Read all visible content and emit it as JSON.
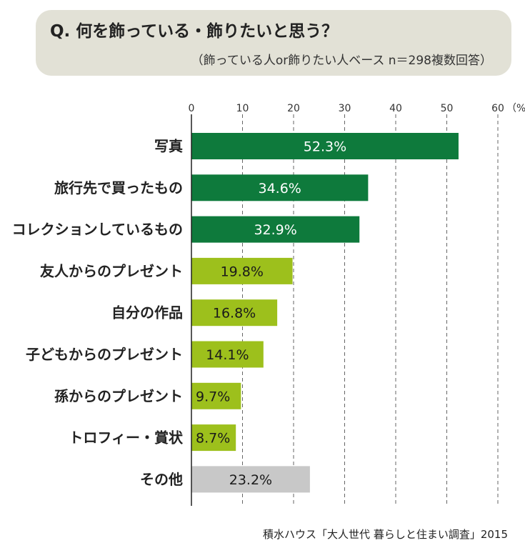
{
  "header": {
    "question": "Q. 何を飾っている・飾りたいと思う？",
    "base_note": "（飾っている人or飾りたい人ベース n＝298複数回答）"
  },
  "source": "積水ハウス「大人世代 暮らしと住まい調査」2015",
  "colors": {
    "dark_green": "#0e7a3c",
    "light_green": "#9dc01c",
    "gray": "#c8c8c8",
    "header_bg": "#e2e1d6"
  },
  "chart_data": {
    "type": "bar",
    "orientation": "horizontal",
    "categories": [
      "写真",
      "旅行先で買ったもの",
      "コレクションしているもの",
      "友人からのプレゼント",
      "自分の作品",
      "子どもからのプレゼント",
      "孫からのプレゼント",
      "トロフィー・賞状",
      "その他"
    ],
    "values": [
      52.3,
      34.6,
      32.9,
      19.8,
      16.8,
      14.1,
      9.7,
      8.7,
      23.2
    ],
    "value_labels": [
      "52.3%",
      "34.6%",
      "32.9%",
      "19.8%",
      "16.8%",
      "14.1%",
      "9.7%",
      "8.7%",
      "23.2%"
    ],
    "bar_colors": [
      "dark_green",
      "dark_green",
      "dark_green",
      "light_green",
      "light_green",
      "light_green",
      "light_green",
      "light_green",
      "gray"
    ],
    "x_ticks": [
      "0",
      "10",
      "20",
      "30",
      "40",
      "50",
      "60"
    ],
    "x_unit": "（%）",
    "xlim": [
      0,
      60
    ],
    "grid": "vertical-dashed"
  }
}
